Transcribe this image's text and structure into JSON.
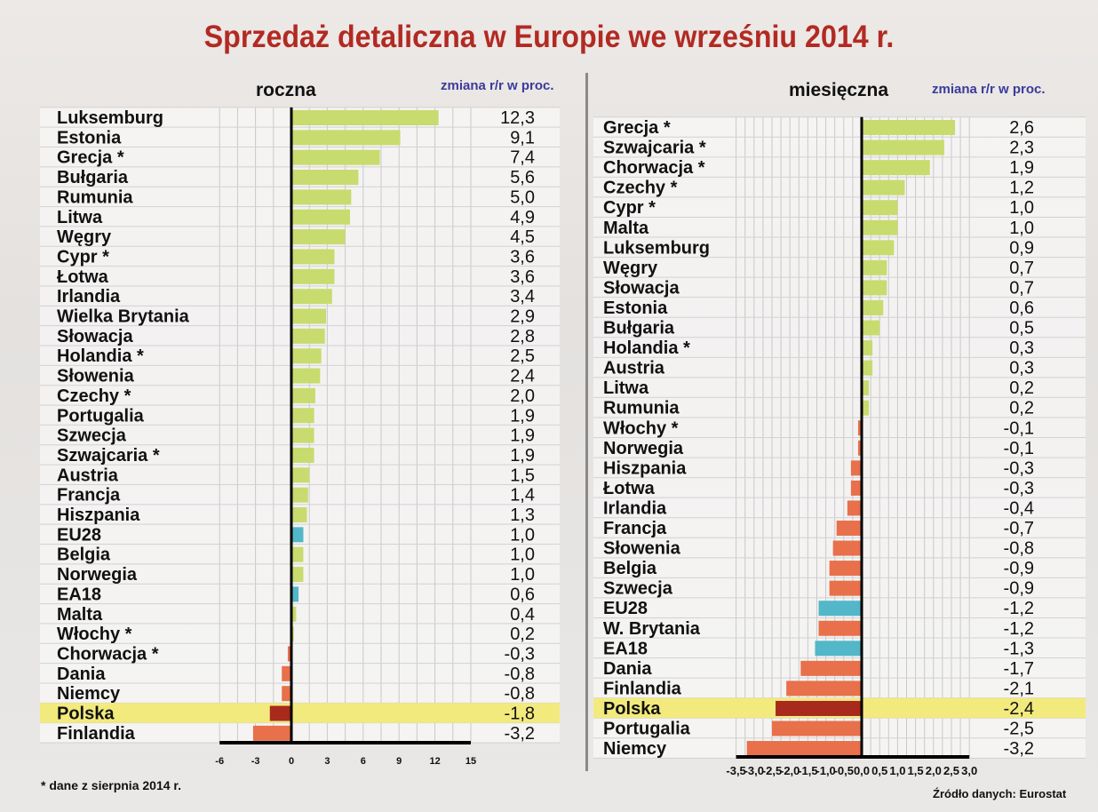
{
  "title": "Sprzedaż detaliczna w Europie we wrześniu 2014 r.",
  "footnote": "* dane z sierpnia 2014 r.",
  "source": "Źródło danych: Eurostat",
  "colors": {
    "positive": "#c8db6e",
    "aggregate": "#52b7c8",
    "negative": "#e8704a",
    "highlight_bar": "#a82a1c",
    "highlight_band": "#f3ea7e",
    "title": "#b22a22"
  },
  "chart_data": [
    {
      "type": "bar",
      "orientation": "horizontal",
      "subtitle": "roczna",
      "unit_label": "zmiana r/r w proc.",
      "xlim": [
        -6,
        15
      ],
      "xticks": [
        "-6",
        "-3",
        "0",
        "3",
        "6",
        "9",
        "12",
        "15"
      ],
      "tick_values": [
        -6,
        -3,
        0,
        3,
        6,
        9,
        12,
        15
      ],
      "grid": true,
      "highlight": "Polska",
      "categories": [
        "Luksemburg",
        "Estonia",
        "Grecja *",
        "Bułgaria",
        "Rumunia",
        "Litwa",
        "Węgry",
        "Cypr *",
        "Łotwa",
        "Irlandia",
        "Wielka Brytania",
        "Słowacja",
        "Holandia *",
        "Słowenia",
        "Czechy *",
        "Portugalia",
        "Szwecja",
        "Szwajcaria *",
        "Austria",
        "Francja",
        "Hiszpania",
        "EU28",
        "Belgia",
        "Norwegia",
        "EA18",
        "Malta",
        "Włochy *",
        "Chorwacja *",
        "Dania",
        "Niemcy",
        "Polska",
        "Finlandia"
      ],
      "values": [
        12.3,
        9.1,
        7.4,
        5.6,
        5.0,
        4.9,
        4.5,
        3.6,
        3.6,
        3.4,
        2.9,
        2.8,
        2.5,
        2.4,
        2.0,
        1.9,
        1.9,
        1.9,
        1.5,
        1.4,
        1.3,
        1.0,
        1.0,
        1.0,
        0.6,
        0.4,
        0.2,
        -0.3,
        -0.8,
        -0.8,
        -1.8,
        -3.2
      ],
      "labels": [
        "12,3",
        "9,1",
        "7,4",
        "5,6",
        "5,0",
        "4,9",
        "4,5",
        "3,6",
        "3,6",
        "3,4",
        "2,9",
        "2,8",
        "2,5",
        "2,4",
        "2,0",
        "1,9",
        "1,9",
        "1,9",
        "1,5",
        "1,4",
        "1,3",
        "1,0",
        "1,0",
        "1,0",
        "0,6",
        "0,4",
        "0,2",
        "-0,3",
        "-0,8",
        "-0,8",
        "-1,8",
        "-3,2"
      ]
    },
    {
      "type": "bar",
      "orientation": "horizontal",
      "subtitle": "miesięczna",
      "unit_label": "zmiana r/r w proc.",
      "xlim": [
        -3.5,
        3.0
      ],
      "xticks": [
        "-3,5",
        "-3,0",
        "-2,5",
        "-2,0",
        "-1,5",
        "-1,0",
        "-0,5",
        "0,0",
        "0,5",
        "1,0",
        "1,5",
        "2,0",
        "2,5",
        "3,0"
      ],
      "tick_values": [
        -3.5,
        -3,
        -2.5,
        -2,
        -1.5,
        -1,
        -0.5,
        0,
        0.5,
        1,
        1.5,
        2,
        2.5,
        3
      ],
      "grid": true,
      "highlight": "Polska",
      "categories": [
        "Grecja *",
        "Szwajcaria *",
        "Chorwacja *",
        "Czechy *",
        "Cypr *",
        "Malta",
        "Luksemburg",
        "Węgry",
        "Słowacja",
        "Estonia",
        "Bułgaria",
        "Holandia *",
        "Austria",
        "Litwa",
        "Rumunia",
        "Włochy *",
        "Norwegia",
        "Hiszpania",
        "Łotwa",
        "Irlandia",
        "Francja",
        "Słowenia",
        "Belgia",
        "Szwecja",
        "EU28",
        "W. Brytania",
        "EA18",
        "Dania",
        "Finlandia",
        "Polska",
        "Portugalia",
        "Niemcy"
      ],
      "values": [
        2.6,
        2.3,
        1.9,
        1.2,
        1.0,
        1.0,
        0.9,
        0.7,
        0.7,
        0.6,
        0.5,
        0.3,
        0.3,
        0.2,
        0.2,
        -0.1,
        -0.1,
        -0.3,
        -0.3,
        -0.4,
        -0.7,
        -0.8,
        -0.9,
        -0.9,
        -1.2,
        -1.2,
        -1.3,
        -1.7,
        -2.1,
        -2.4,
        -2.5,
        -3.2
      ],
      "labels": [
        "2,6",
        "2,3",
        "1,9",
        "1,2",
        "1,0",
        "1,0",
        "0,9",
        "0,7",
        "0,7",
        "0,6",
        "0,5",
        "0,3",
        "0,3",
        "0,2",
        "0,2",
        "-0,1",
        "-0,1",
        "-0,3",
        "-0,3",
        "-0,4",
        "-0,7",
        "-0,8",
        "-0,9",
        "-0,9",
        "-1,2",
        "-1,2",
        "-1,3",
        "-1,7",
        "-2,1",
        "-2,4",
        "-2,5",
        "-3,2"
      ]
    }
  ]
}
